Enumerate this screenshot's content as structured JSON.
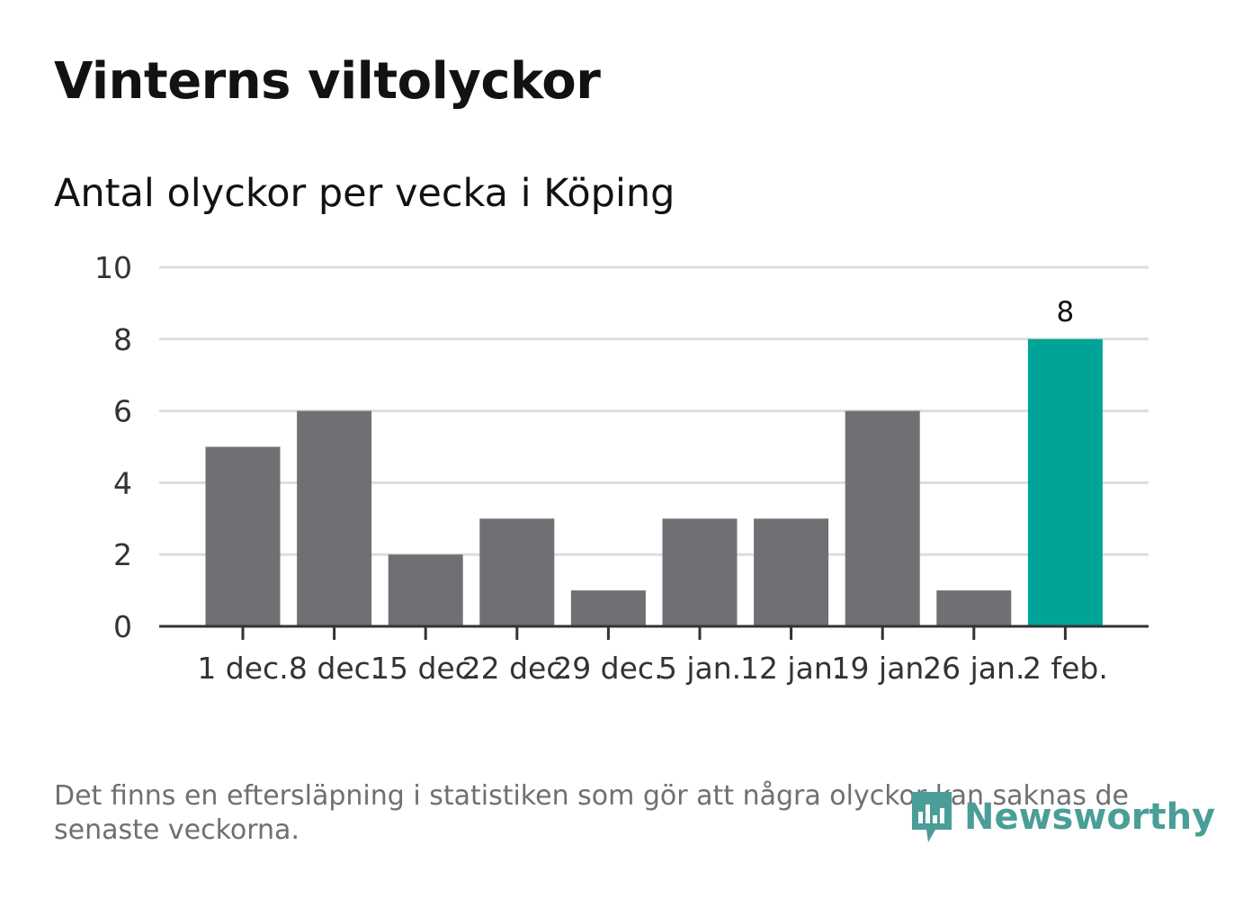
{
  "header": {
    "title": "Vinterns viltolyckor",
    "subtitle": "Antal olyckor per vecka i Köping"
  },
  "chart_data": {
    "type": "bar",
    "title": "Vinterns viltolyckor",
    "subtitle": "Antal olyckor per vecka i Köping",
    "categories": [
      "1 dec.",
      "8 dec.",
      "15 dec.",
      "22 dec.",
      "29 dec.",
      "5 jan.",
      "12 jan.",
      "19 jan.",
      "26 jan.",
      "2 feb."
    ],
    "values": [
      5,
      6,
      2,
      3,
      1,
      3,
      3,
      6,
      1,
      8
    ],
    "ylim": [
      0,
      10
    ],
    "yticks": [
      0,
      2,
      4,
      6,
      8,
      10
    ],
    "xlabel": "",
    "ylabel": "",
    "grid": true,
    "highlight_index": 9,
    "data_labels": [
      {
        "index": 9,
        "text": "8"
      }
    ],
    "colors": {
      "bar": "#706f74",
      "highlight": "#00a398",
      "grid": "#dddddd",
      "axis": "#333333"
    }
  },
  "footer": {
    "note": "Det finns en eftersläpning i statistiken som gör att några olyckor kan saknas de senaste veckorna.",
    "brand": "Newsworthy",
    "brand_icon": "bar-chart-speech-bubble-icon",
    "brand_color": "#4a9e98"
  }
}
